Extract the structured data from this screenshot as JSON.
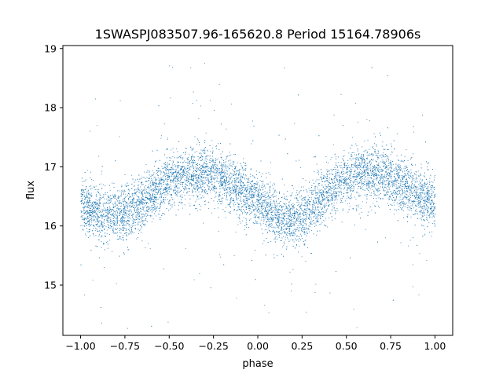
{
  "chart_data": {
    "type": "scatter",
    "title": "1SWASPJ083507.96-165620.8 Period 15164.78906s",
    "xlabel": "phase",
    "ylabel": "flux",
    "xlim": [
      -1.1,
      1.1
    ],
    "ylim": [
      14.15,
      19.05
    ],
    "xticks": [
      -1.0,
      -0.75,
      -0.5,
      -0.25,
      0.0,
      0.25,
      0.5,
      0.75,
      1.0
    ],
    "xtick_labels": [
      "−1.00",
      "−0.75",
      "−0.50",
      "−0.25",
      "0.00",
      "0.25",
      "0.50",
      "0.75",
      "1.00"
    ],
    "yticks": [
      15,
      16,
      17,
      18,
      19
    ],
    "ytick_labels": [
      "15",
      "16",
      "17",
      "18",
      "19"
    ],
    "grid": false,
    "point_color": "#1f77b4",
    "phase_range": [
      -1.0,
      1.0
    ],
    "mean_curve": {
      "phase": [
        -1.0,
        -0.9,
        -0.8,
        -0.7,
        -0.6,
        -0.5,
        -0.4,
        -0.3,
        -0.2,
        -0.1,
        0.0,
        0.1,
        0.15,
        0.2,
        0.3,
        0.4,
        0.5,
        0.6,
        0.7,
        0.8,
        0.9,
        1.0
      ],
      "flux": [
        16.35,
        16.22,
        16.18,
        16.3,
        16.55,
        16.75,
        16.88,
        16.9,
        16.8,
        16.62,
        16.4,
        16.15,
        16.08,
        16.1,
        16.3,
        16.6,
        16.78,
        16.88,
        16.85,
        16.72,
        16.55,
        16.4
      ]
    },
    "scatter_width": 0.5
  }
}
